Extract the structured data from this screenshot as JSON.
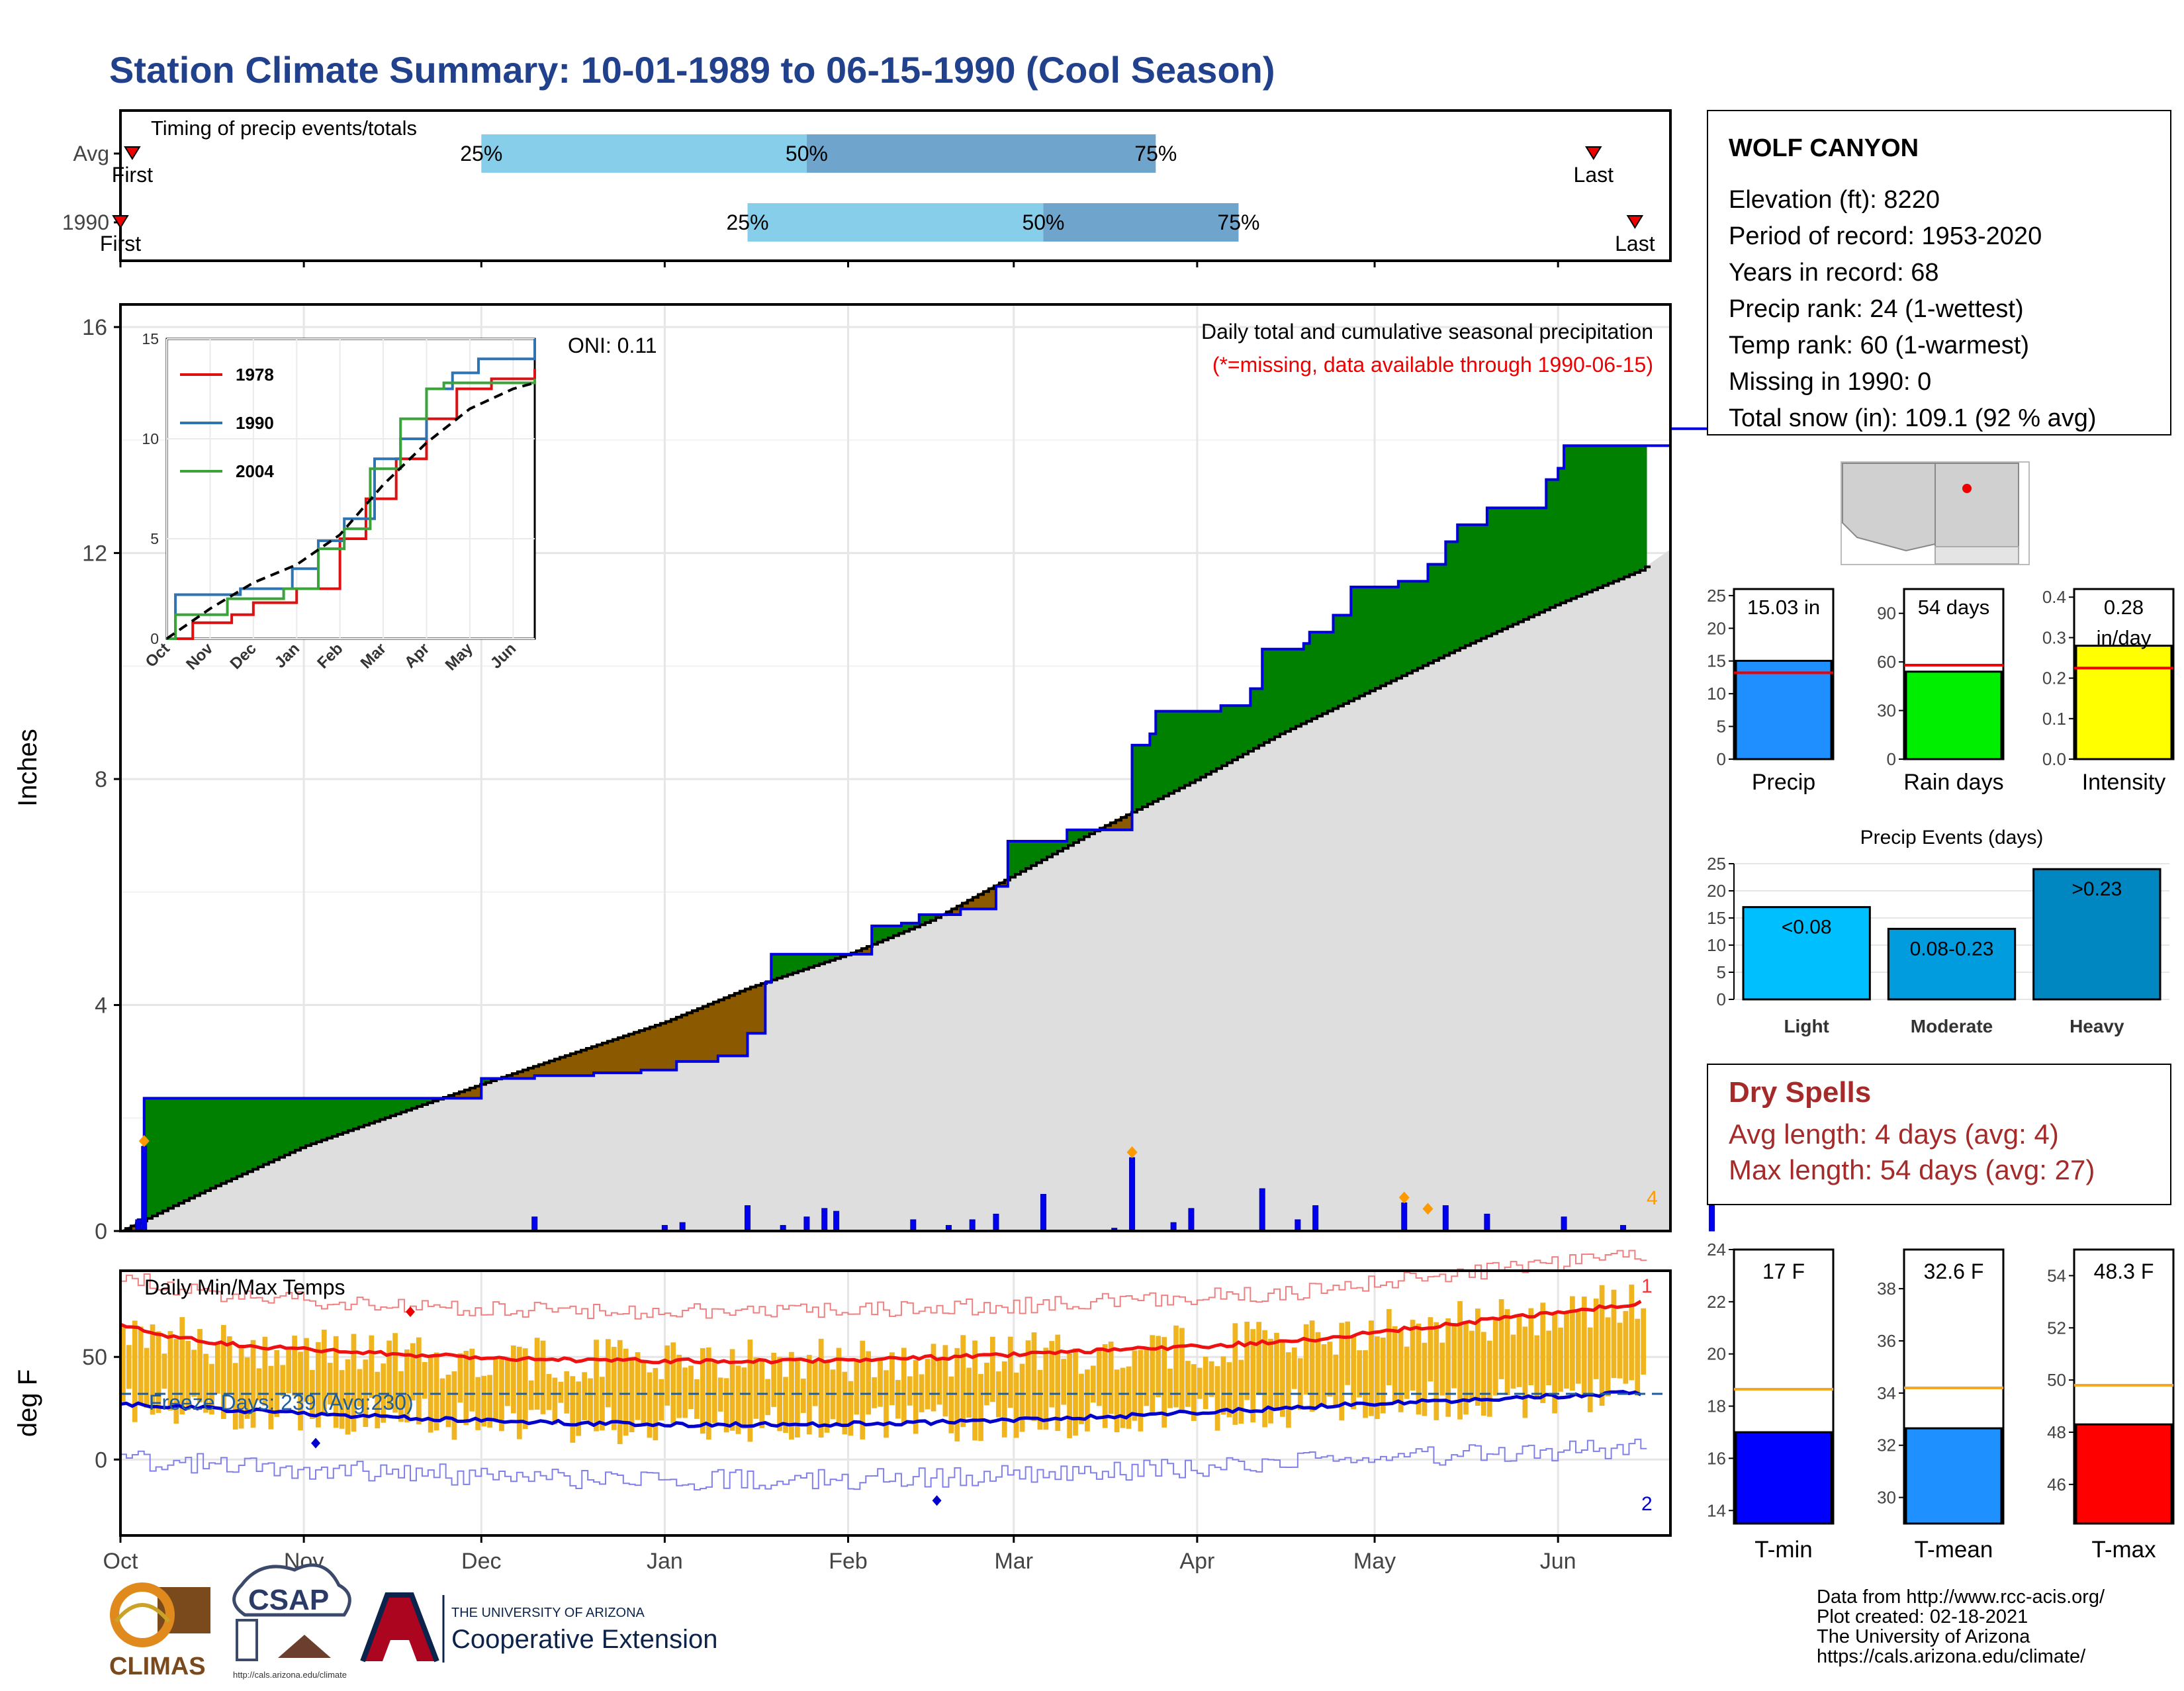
{
  "title": "Station Climate Summary: 10-01-1989 to 06-15-1990 (Cool Season)",
  "timing": {
    "label": "Timing of precip events/totals",
    "rows": [
      {
        "name": "Avg",
        "first_label": "First",
        "last_label": "Last",
        "first": "1989-10-03",
        "p25": "1989-12-01",
        "p50": "1990-01-25",
        "p75": "1990-03-25",
        "last": "1990-06-07"
      },
      {
        "name": "1990",
        "first_label": "First",
        "last_label": "Last",
        "first": "1989-10-01",
        "p25": "1990-01-15",
        "p50": "1990-03-06",
        "p75": "1990-04-08",
        "last": "1990-06-14"
      }
    ],
    "pct_labels": [
      "25%",
      "50%",
      "75%"
    ]
  },
  "main": {
    "oni": "ONI: 0.11",
    "ann_title": "Daily total and cumulative seasonal precipitation",
    "ann_sub": "(*=missing, data available through 1990-06-15)",
    "ylabel": "Inches",
    "ylim": [
      0,
      16.4
    ],
    "yticks": [
      "0",
      "4",
      "8",
      "12",
      "16"
    ],
    "right_marker": "4",
    "colors": {
      "wet": "#008000",
      "dry": "#8b5a00",
      "normal_fill": "#dedede",
      "observed_line": "#0000dd",
      "daily_bar": "#0000ee",
      "marker": "#ff9900"
    }
  },
  "months": [
    "Oct",
    "Nov",
    "Dec",
    "Jan",
    "Feb",
    "Mar",
    "Apr",
    "May",
    "Jun"
  ],
  "chart_data": [
    {
      "type": "area",
      "name": "cumulative-precip",
      "x_start": "1989-10-01",
      "x_end": "1990-06-15",
      "series": [
        {
          "name": "1990",
          "points": [
            [
              "1989-10-01",
              0
            ],
            [
              "1989-10-04",
              0.2
            ],
            [
              "1989-10-05",
              2.35
            ],
            [
              "1989-11-26",
              2.35
            ],
            [
              "1989-12-01",
              2.7
            ],
            [
              "1989-12-10",
              2.75
            ],
            [
              "1989-12-20",
              2.8
            ],
            [
              "1989-12-28",
              2.85
            ],
            [
              "1990-01-03",
              3.0
            ],
            [
              "1990-01-10",
              3.1
            ],
            [
              "1990-01-15",
              3.5
            ],
            [
              "1990-01-18",
              4.4
            ],
            [
              "1990-01-19",
              4.9
            ],
            [
              "1990-02-02",
              4.9
            ],
            [
              "1990-02-05",
              5.4
            ],
            [
              "1990-02-10",
              5.45
            ],
            [
              "1990-02-13",
              5.6
            ],
            [
              "1990-02-20",
              5.7
            ],
            [
              "1990-02-26",
              6.1
            ],
            [
              "1990-02-28",
              6.9
            ],
            [
              "1990-03-08",
              6.9
            ],
            [
              "1990-03-10",
              7.1
            ],
            [
              "1990-03-20",
              7.1
            ],
            [
              "1990-03-21",
              8.6
            ],
            [
              "1990-03-24",
              8.8
            ],
            [
              "1990-03-25",
              9.2
            ],
            [
              "1990-04-01",
              9.2
            ],
            [
              "1990-04-05",
              9.3
            ],
            [
              "1990-04-10",
              9.6
            ],
            [
              "1990-04-12",
              10.3
            ],
            [
              "1990-04-19",
              10.4
            ],
            [
              "1990-04-20",
              10.6
            ],
            [
              "1990-04-24",
              10.9
            ],
            [
              "1990-04-27",
              11.4
            ],
            [
              "1990-05-05",
              11.5
            ],
            [
              "1990-05-10",
              11.8
            ],
            [
              "1990-05-13",
              12.2
            ],
            [
              "1990-05-15",
              12.5
            ],
            [
              "1990-05-20",
              12.8
            ],
            [
              "1990-05-29",
              12.8
            ],
            [
              "1990-05-30",
              13.3
            ],
            [
              "1990-06-01",
              13.5
            ],
            [
              "1990-06-02",
              13.9
            ],
            [
              "1990-06-17",
              13.9
            ],
            [
              "1990-06-20",
              14.2
            ],
            [
              "1990-06-26",
              14.2
            ],
            [
              "1990-06-27",
              15.03
            ],
            [
              "1990-06-30",
              15.03
            ]
          ]
        },
        {
          "name": "Avg",
          "points": [
            [
              "1989-10-01",
              0
            ],
            [
              "1989-10-15",
              0.7
            ],
            [
              "1989-11-01",
              1.5
            ],
            [
              "1989-11-20",
              2.2
            ],
            [
              "1989-12-01",
              2.6
            ],
            [
              "1989-12-15",
              3.1
            ],
            [
              "1990-01-01",
              3.7
            ],
            [
              "1990-01-15",
              4.3
            ],
            [
              "1990-02-01",
              4.9
            ],
            [
              "1990-02-15",
              5.5
            ],
            [
              "1990-03-01",
              6.3
            ],
            [
              "1990-03-15",
              7.1
            ],
            [
              "1990-04-01",
              8.0
            ],
            [
              "1990-04-15",
              8.8
            ],
            [
              "1990-05-01",
              9.6
            ],
            [
              "1990-05-15",
              10.3
            ],
            [
              "1990-06-01",
              11.1
            ],
            [
              "1990-06-15",
              11.7
            ],
            [
              "1990-06-30",
              12.8
            ]
          ]
        }
      ],
      "daily_precip": [
        [
          "1989-10-04",
          0.2
        ],
        [
          "1989-10-05",
          1.5
        ],
        [
          "1989-12-10",
          0.25
        ],
        [
          "1990-01-01",
          0.1
        ],
        [
          "1990-01-04",
          0.15
        ],
        [
          "1990-01-15",
          0.45
        ],
        [
          "1990-01-21",
          0.1
        ],
        [
          "1990-01-25",
          0.25
        ],
        [
          "1990-01-28",
          0.4
        ],
        [
          "1990-01-30",
          0.35
        ],
        [
          "1990-02-12",
          0.2
        ],
        [
          "1990-02-18",
          0.1
        ],
        [
          "1990-02-22",
          0.2
        ],
        [
          "1990-02-26",
          0.3
        ],
        [
          "1990-03-06",
          0.65
        ],
        [
          "1990-03-18",
          0.05
        ],
        [
          "1990-03-21",
          1.3
        ],
        [
          "1990-03-28",
          0.15
        ],
        [
          "1990-03-31",
          0.4
        ],
        [
          "1990-04-12",
          0.75
        ],
        [
          "1990-04-18",
          0.2
        ],
        [
          "1990-04-21",
          0.45
        ],
        [
          "1990-05-06",
          0.5
        ],
        [
          "1990-05-13",
          0.45
        ],
        [
          "1990-05-20",
          0.3
        ],
        [
          "1990-06-02",
          0.25
        ],
        [
          "1990-06-12",
          0.1
        ],
        [
          "1990-06-27",
          0.65
        ]
      ]
    },
    {
      "type": "line",
      "name": "inset-cumulative",
      "ylim": [
        0,
        15
      ],
      "yticks": [
        "0",
        "5",
        "10",
        "15"
      ],
      "months": [
        "Oct",
        "Nov",
        "Dec",
        "Jan",
        "Feb",
        "Mar",
        "Apr",
        "May",
        "Jun"
      ],
      "series": [
        {
          "name": "1978",
          "color": "#dd1111",
          "points": [
            [
              0,
              0
            ],
            [
              0.6,
              0.8
            ],
            [
              1.5,
              1.2
            ],
            [
              2,
              1.8
            ],
            [
              3,
              2.5
            ],
            [
              4,
              5
            ],
            [
              4.6,
              7
            ],
            [
              5.3,
              9
            ],
            [
              6,
              11
            ],
            [
              6.7,
              12.5
            ],
            [
              7.5,
              13
            ],
            [
              8.5,
              13.5
            ]
          ]
        },
        {
          "name": "1990",
          "color": "#2f73b3",
          "points": [
            [
              0,
              0
            ],
            [
              0.2,
              2.2
            ],
            [
              1.7,
              2.5
            ],
            [
              2.9,
              3.5
            ],
            [
              3.5,
              4.9
            ],
            [
              4.1,
              6
            ],
            [
              4.8,
              9
            ],
            [
              5.4,
              10
            ],
            [
              6,
              12.5
            ],
            [
              6.6,
              13.3
            ],
            [
              7.2,
              14
            ],
            [
              8.5,
              15
            ]
          ]
        },
        {
          "name": "2004",
          "color": "#3aa33a",
          "points": [
            [
              0,
              0
            ],
            [
              0.2,
              1.2
            ],
            [
              1.4,
              2
            ],
            [
              2.7,
              2.5
            ],
            [
              3.5,
              4.5
            ],
            [
              4.1,
              5.5
            ],
            [
              4.7,
              8.5
            ],
            [
              5.4,
              11
            ],
            [
              6,
              12.5
            ],
            [
              6.4,
              12.8
            ],
            [
              8.5,
              13
            ]
          ]
        },
        {
          "name": "Avg",
          "color": "#000000",
          "dashed": true,
          "points": [
            [
              0,
              0
            ],
            [
              1,
              1.5
            ],
            [
              2,
              2.8
            ],
            [
              3,
              3.7
            ],
            [
              4,
              5.2
            ],
            [
              5,
              7.7
            ],
            [
              6,
              9.8
            ],
            [
              7,
              11.5
            ],
            [
              8,
              12.5
            ],
            [
              8.5,
              12.8
            ]
          ]
        }
      ]
    },
    {
      "type": "bar",
      "name": "season-totals",
      "panels": [
        {
          "xlabel": "Precip",
          "value": 15.03,
          "avg": 13.2,
          "label": "15.03 in",
          "ylim": [
            0,
            26
          ],
          "yticks": [
            "0",
            "5",
            "10",
            "15",
            "20",
            "25"
          ],
          "color": "#1f8fff"
        },
        {
          "xlabel": "Rain days",
          "value": 54,
          "avg": 58,
          "label": "54 days",
          "ylim": [
            0,
            105
          ],
          "yticks": [
            "0",
            "30",
            "60",
            "90"
          ],
          "color": "#00ee00"
        },
        {
          "xlabel": "Intensity",
          "value": 0.28,
          "avg": 0.225,
          "label": "0.28",
          "label2": "in/day",
          "ylim": [
            0,
            0.42
          ],
          "yticks": [
            "0.0",
            "0.1",
            "0.2",
            "0.3",
            "0.4"
          ],
          "color": "#ffff00"
        }
      ]
    },
    {
      "type": "bar",
      "name": "precip-events",
      "title": "Precip Events (days)",
      "categories": [
        "Light",
        "Moderate",
        "Heavy"
      ],
      "values": [
        17,
        13,
        24
      ],
      "labels": [
        "<0.08",
        "0.08-0.23",
        ">0.23"
      ],
      "ylim": [
        0,
        25
      ],
      "yticks": [
        "0",
        "5",
        "10",
        "15",
        "20",
        "25"
      ],
      "colors": [
        "#00bfff",
        "#009cdd",
        "#0086c0"
      ]
    },
    {
      "type": "bar",
      "name": "temp-summary",
      "panels": [
        {
          "xlabel": "T-min",
          "value": 17.0,
          "avg": 18.65,
          "label": "17 F",
          "ylim": [
            13.5,
            24
          ],
          "yticks": [
            "14",
            "16",
            "18",
            "20",
            "22",
            "24"
          ],
          "color": "#0000ff"
        },
        {
          "xlabel": "T-mean",
          "value": 32.65,
          "avg": 34.2,
          "label": "32.6 F",
          "ylim": [
            29,
            39.5
          ],
          "yticks": [
            "30",
            "32",
            "34",
            "36",
            "38"
          ],
          "color": "#1e90ff"
        },
        {
          "xlabel": "T-max",
          "value": 48.3,
          "avg": 49.8,
          "label": "48.3 F",
          "ylim": [
            44.5,
            55
          ],
          "yticks": [
            "46",
            "48",
            "50",
            "52",
            "54"
          ],
          "color": "#ff0000"
        }
      ]
    }
  ],
  "temps": {
    "label": "Daily Min/Max Temps",
    "freeze": "Freeze Days: 239 (Avg:230)",
    "ylabel": "deg F",
    "yticks": [
      "0",
      "50"
    ],
    "marker_top": "1",
    "marker_bottom": "2"
  },
  "station": {
    "name": "WOLF CANYON",
    "lines": [
      "Elevation (ft): 8220",
      "Period of record: 1953-2020",
      "Years in record: 68",
      "Precip rank: 24 (1-wettest)",
      "Temp rank: 60 (1-warmest)",
      "Missing in 1990: 0",
      "Total snow (in): 109.1 (92 % avg)"
    ]
  },
  "dry": {
    "title": "Dry Spells",
    "lines": [
      "Avg length: 4 days (avg: 4)",
      "Max length: 54 days (avg: 27)"
    ]
  },
  "credits": [
    "Data from http://www.rcc-acis.org/",
    "Plot created: 02-18-2021",
    "The University of Arizona",
    "https://cals.arizona.edu/climate/"
  ],
  "logos": {
    "climas": "CLIMAS",
    "csap": "CSAP",
    "csap_url": "http://cals.arizona.edu/climate",
    "ua_small": "THE UNIVERSITY OF ARIZONA",
    "ua_big": "Cooperative Extension"
  }
}
